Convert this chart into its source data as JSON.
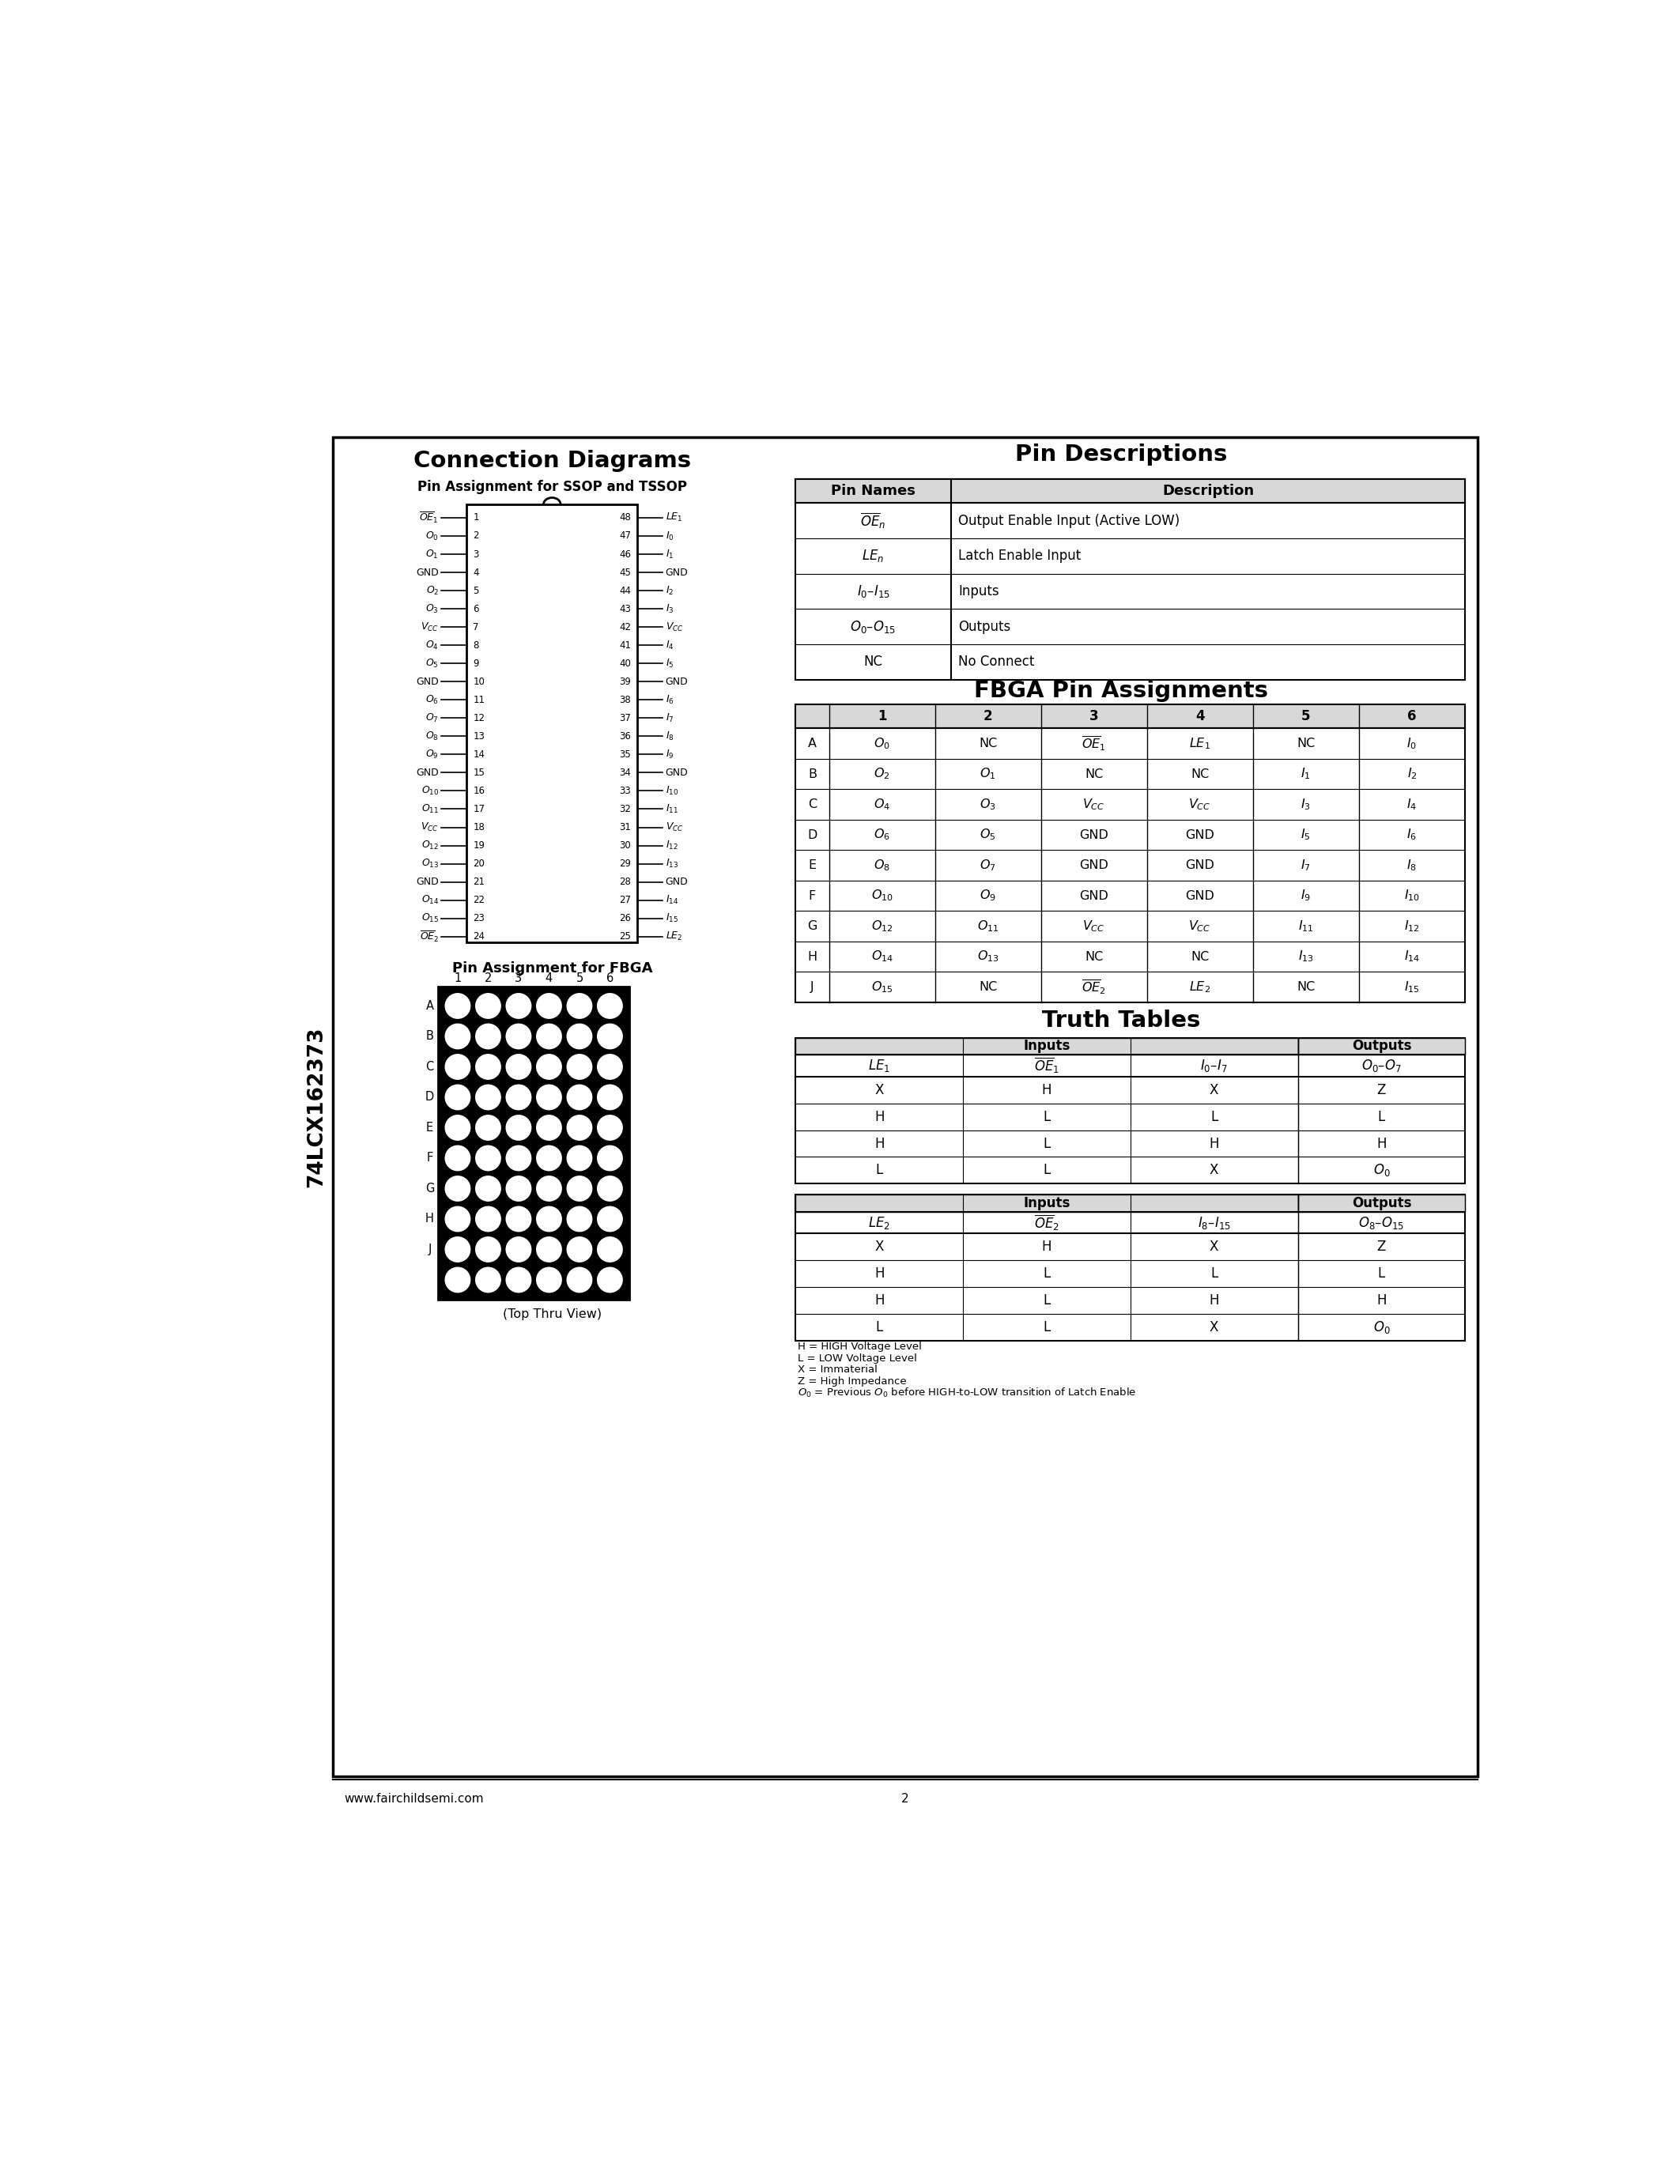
{
  "page_bg": "#ffffff",
  "border_color": "#000000",
  "title_text": "74LCX162373",
  "section_left_title": "Connection Diagrams",
  "section_right_title": "Pin Descriptions",
  "ssop_title": "Pin Assignment for SSOP and TSSOP",
  "fbga_title": "Pin Assignment for FBGA",
  "fbga_section_title": "FBGA Pin Assignments",
  "truth_title": "Truth Tables",
  "footer_url": "www.fairchildsemi.com",
  "footer_page": "2"
}
